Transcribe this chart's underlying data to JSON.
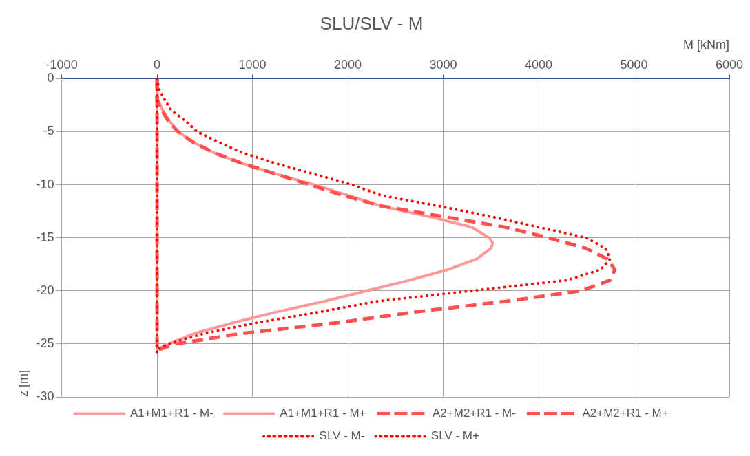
{
  "chart_data": {
    "type": "line",
    "title": "SLU/SLV - M",
    "xlabel": "M [kNm]",
    "ylabel": "z [m]",
    "xlim": [
      -1000,
      6000
    ],
    "xticks": [
      -1000,
      0,
      1000,
      2000,
      3000,
      4000,
      5000,
      6000
    ],
    "ylim": [
      -30,
      0
    ],
    "yticks": [
      0,
      -5,
      -10,
      -15,
      -20,
      -25,
      -30
    ],
    "grid": true,
    "legend": "bottom",
    "marker": "none",
    "series": [
      {
        "name": "A1+M1+R1 - M-",
        "color": "#ff9999",
        "line_style": "solid",
        "x": [
          0,
          0,
          0,
          0,
          0,
          0,
          0
        ],
        "values": [
          0,
          -5,
          -10,
          -15,
          -20,
          -25,
          -25.5
        ]
      },
      {
        "name": "A1+M1+R1 - M+",
        "color": "#ff9999",
        "line_style": "solid",
        "x": [
          0,
          0,
          10,
          60,
          130,
          220,
          380,
          600,
          900,
          1250,
          1650,
          2000,
          2350,
          2850,
          3300,
          3480,
          3520,
          3500,
          3350,
          3050,
          2650,
          2200,
          1750,
          1250,
          800,
          400,
          120,
          0
        ],
        "values": [
          0,
          -1,
          -2,
          -3,
          -4,
          -5,
          -6,
          -7,
          -8,
          -9,
          -10,
          -11,
          -12,
          -13,
          -14,
          -15,
          -15.5,
          -16,
          -17,
          -18,
          -19,
          -20,
          -21,
          -22,
          -23,
          -24,
          -25,
          -25.5
        ]
      },
      {
        "name": "A2+M2+R1 - M-",
        "color": "#ff5050",
        "line_style": "dashed",
        "x": [
          0,
          0,
          0,
          0,
          0,
          0,
          0
        ],
        "values": [
          0,
          -5,
          -10,
          -15,
          -20,
          -25,
          -25.6
        ]
      },
      {
        "name": "A2+M2+R1 - M+",
        "color": "#ff5050",
        "line_style": "dashed",
        "x": [
          0,
          0,
          0,
          50,
          120,
          220,
          380,
          600,
          900,
          1250,
          1600,
          1950,
          2350,
          3000,
          3650,
          4100,
          4500,
          4720,
          4800,
          4750,
          4450,
          3650,
          2700,
          1900,
          900,
          200,
          0
        ],
        "values": [
          0,
          -1,
          -2,
          -3,
          -4,
          -5,
          -6,
          -7,
          -8,
          -9,
          -10,
          -11,
          -12,
          -13,
          -14,
          -15,
          -16,
          -17,
          -18,
          -19,
          -20,
          -21,
          -22,
          -23,
          -24,
          -25,
          -25.6
        ]
      },
      {
        "name": "SLV - M-",
        "color": "#ff0000",
        "line_style": "dotted",
        "x": [
          0,
          0,
          0,
          0,
          0,
          0,
          0
        ],
        "values": [
          0,
          -5,
          -10,
          -15,
          -20,
          -25,
          -26
        ]
      },
      {
        "name": "SLV - M+",
        "color": "#ff0000",
        "line_style": "dotted",
        "x": [
          0,
          20,
          80,
          150,
          300,
          420,
          650,
          900,
          1250,
          1650,
          2050,
          2350,
          2950,
          3500,
          4000,
          4500,
          4700,
          4750,
          4650,
          4300,
          3300,
          2300,
          1700,
          1050,
          500,
          120,
          0
        ],
        "values": [
          0,
          -1,
          -2,
          -3,
          -4,
          -5,
          -6,
          -7,
          -8,
          -9,
          -10,
          -11,
          -12,
          -13,
          -14,
          -15,
          -16,
          -17,
          -18,
          -19,
          -20,
          -21,
          -22,
          -23,
          -24,
          -25,
          -25.5
        ]
      }
    ]
  }
}
